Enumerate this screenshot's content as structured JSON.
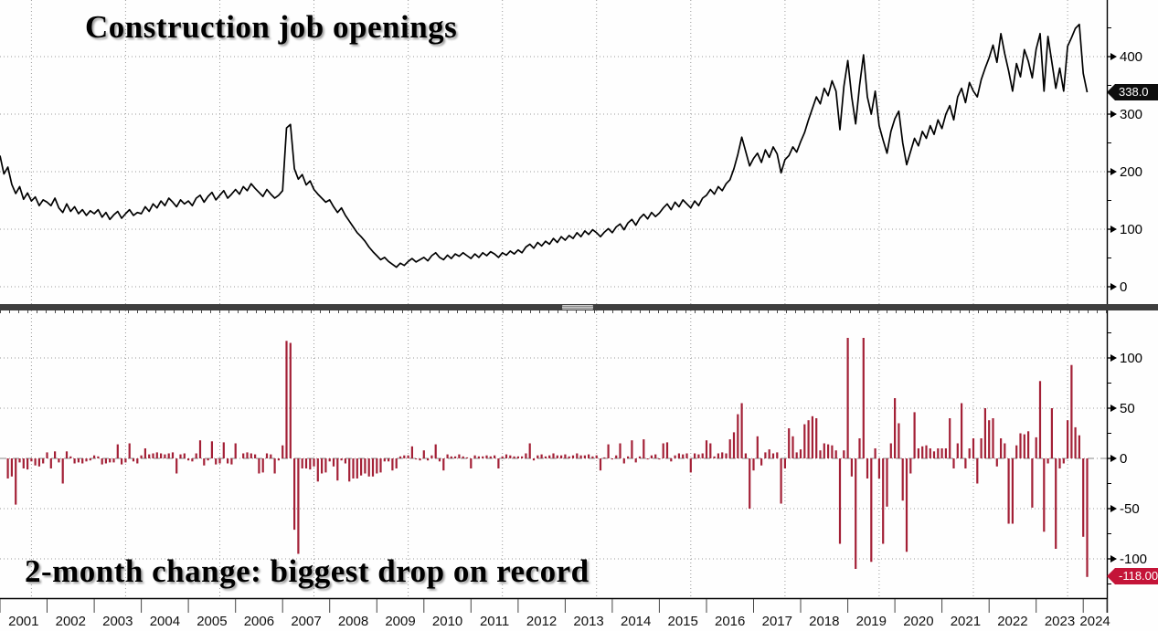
{
  "top_panel": {
    "title": "Construction job openings",
    "last_value_label": "338.0",
    "yticks": [
      {
        "label": "400",
        "value": 400
      },
      {
        "label": "300",
        "value": 300
      },
      {
        "label": "200",
        "value": 200
      },
      {
        "label": "100",
        "value": 100
      },
      {
        "label": "0",
        "value": 0
      }
    ],
    "minor_ticks": [
      450,
      350,
      250,
      150,
      50
    ]
  },
  "bottom_panel": {
    "title": "2-month change: biggest drop on record",
    "last_value_label": "-118.00",
    "yticks": [
      {
        "label": "100",
        "value": 100
      },
      {
        "label": "50",
        "value": 50
      },
      {
        "label": "0",
        "value": 0
      },
      {
        "label": "-50",
        "value": -50
      },
      {
        "label": "-100",
        "value": -100
      }
    ],
    "minor_ticks": [
      125,
      75,
      25,
      -25,
      -75,
      -125
    ]
  },
  "x_axis": {
    "years": [
      "2001",
      "2002",
      "2003",
      "2004",
      "2005",
      "2006",
      "2007",
      "2008",
      "2009",
      "2010",
      "2011",
      "2012",
      "2013",
      "2014",
      "2015",
      "2016",
      "2017",
      "2018",
      "2019",
      "2020",
      "2021",
      "2022",
      "2023",
      "2024"
    ]
  },
  "colors": {
    "line": "#000000",
    "bar": "#a32036",
    "tag_dark_bg": "#0d0d0d",
    "tag_red_bg": "#c41438",
    "grid": "#999999",
    "zero_line": "#888888",
    "axis": "#000000",
    "divider": "#3e3e3e"
  },
  "chart_data": [
    {
      "type": "line",
      "title": "Construction job openings",
      "frequency": "monthly",
      "x_start": "2001-01",
      "x_end": "2024-02",
      "unit": "thousands",
      "ylim": [
        0,
        475
      ],
      "yticks": [
        0,
        100,
        200,
        300,
        400
      ],
      "last_value": 338.0,
      "values": [
        228,
        196,
        208,
        178,
        162,
        174,
        152,
        163,
        149,
        156,
        141,
        151,
        147,
        141,
        154,
        137,
        129,
        144,
        131,
        139,
        127,
        134,
        124,
        132,
        127,
        134,
        121,
        129,
        117,
        125,
        131,
        119,
        127,
        134,
        124,
        129,
        127,
        139,
        131,
        144,
        137,
        149,
        141,
        154,
        147,
        139,
        151,
        144,
        149,
        141,
        154,
        159,
        147,
        157,
        164,
        151,
        159,
        167,
        154,
        161,
        169,
        161,
        174,
        167,
        179,
        171,
        164,
        157,
        169,
        161,
        154,
        159,
        167,
        276,
        282,
        205,
        187,
        195,
        177,
        184,
        169,
        161,
        154,
        147,
        151,
        139,
        129,
        137,
        124,
        114,
        104,
        94,
        87,
        79,
        69,
        61,
        54,
        47,
        51,
        44,
        39,
        34,
        41,
        37,
        44,
        49,
        43,
        47,
        51,
        45,
        54,
        59,
        51,
        47,
        55,
        49,
        57,
        53,
        59,
        54,
        49,
        57,
        51,
        59,
        54,
        61,
        57,
        51,
        59,
        55,
        62,
        57,
        64,
        59,
        69,
        74,
        67,
        77,
        71,
        79,
        74,
        84,
        77,
        87,
        81,
        89,
        84,
        94,
        87,
        97,
        91,
        99,
        94,
        87,
        95,
        101,
        94,
        104,
        109,
        99,
        111,
        117,
        107,
        119,
        126,
        118,
        129,
        122,
        128,
        137,
        144,
        134,
        147,
        139,
        151,
        144,
        137,
        149,
        141,
        154,
        159,
        169,
        161,
        174,
        167,
        179,
        186,
        205,
        230,
        260,
        235,
        210,
        223,
        232,
        216,
        238,
        225,
        243,
        231,
        198,
        221,
        228,
        243,
        234,
        252,
        268,
        290,
        310,
        330,
        318,
        345,
        332,
        358,
        340,
        273,
        348,
        393,
        330,
        283,
        350,
        403,
        330,
        300,
        340,
        280,
        255,
        232,
        270,
        292,
        305,
        250,
        212,
        235,
        258,
        245,
        270,
        258,
        280,
        265,
        290,
        275,
        300,
        315,
        290,
        330,
        345,
        320,
        355,
        340,
        330,
        360,
        380,
        398,
        420,
        390,
        440,
        405,
        375,
        340,
        388,
        365,
        412,
        392,
        363,
        413,
        440,
        340,
        435,
        390,
        345,
        380,
        340,
        418,
        433,
        449,
        456,
        371,
        338
      ]
    },
    {
      "type": "bar",
      "title": "2-month change: biggest drop on record",
      "frequency": "monthly",
      "derivation": "bar[i] = openings[i] - openings[i-2] (2-month change of the line series above)",
      "ylim": [
        -145,
        147
      ],
      "yticks": [
        -100,
        -50,
        0,
        50,
        100
      ],
      "last_value": -118.0
    }
  ]
}
